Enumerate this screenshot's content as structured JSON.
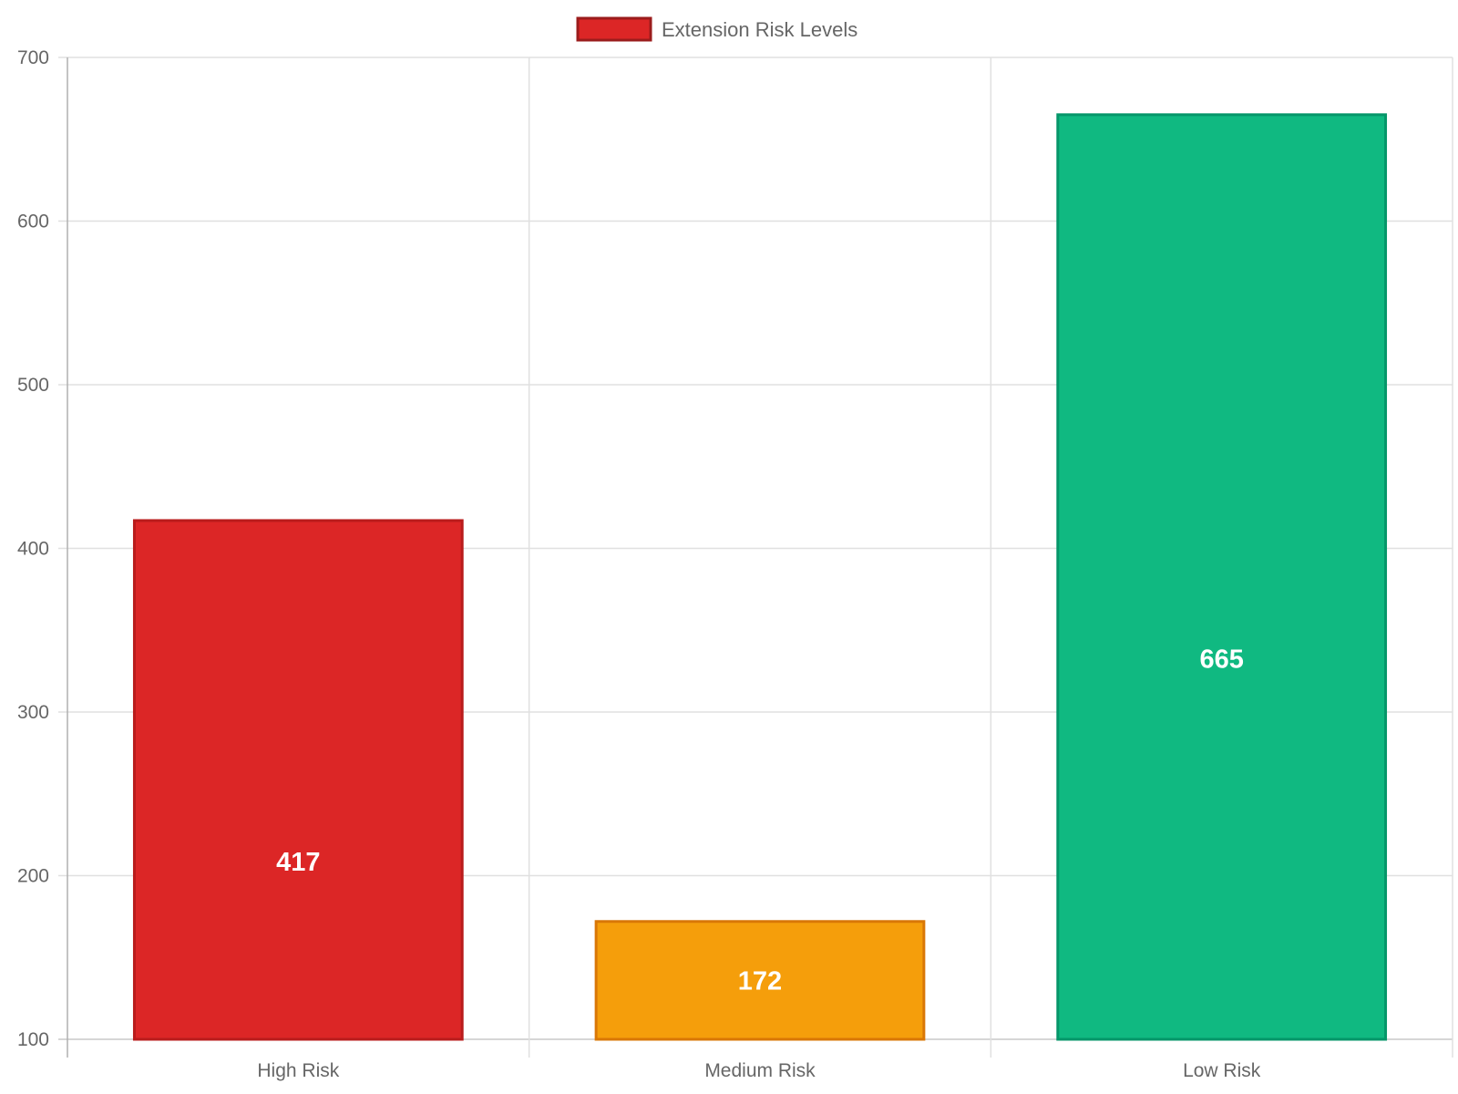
{
  "chart_data": {
    "type": "bar",
    "categories": [
      "High Risk",
      "Medium Risk",
      "Low Risk"
    ],
    "series": [
      {
        "name": "Extension Risk Levels",
        "values": [
          417,
          172,
          665
        ]
      }
    ],
    "colors": {
      "fill": [
        "#dc2626",
        "#f59e0b",
        "#10b981"
      ],
      "border": [
        "#b91c1c",
        "#d97706",
        "#059669"
      ]
    },
    "legend": {
      "label": "Extension Risk Levels",
      "position": "top"
    },
    "ylim": [
      100,
      700
    ],
    "yticks": [
      "100",
      "200",
      "300",
      "400",
      "500",
      "600",
      "700"
    ],
    "grid": true,
    "data_labels": [
      "417",
      "172",
      "665"
    ],
    "title": "",
    "xlabel": "",
    "ylabel": ""
  }
}
